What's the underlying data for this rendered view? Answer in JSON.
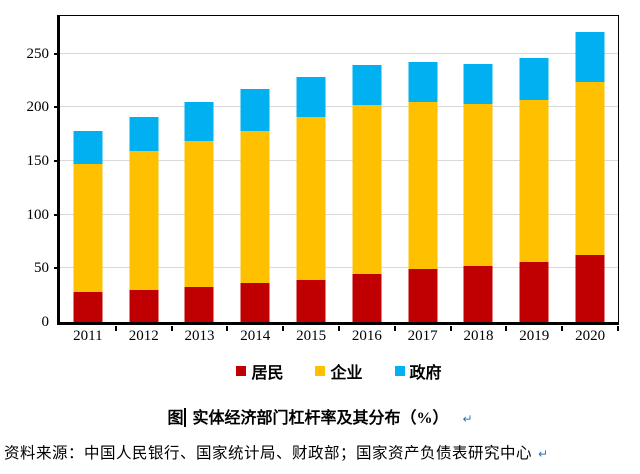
{
  "chart_data": {
    "type": "bar",
    "stacked": true,
    "categories": [
      "2011",
      "2012",
      "2013",
      "2014",
      "2015",
      "2016",
      "2017",
      "2018",
      "2019",
      "2020"
    ],
    "series": [
      {
        "name": "居民",
        "key": "residents",
        "color": "#c00000",
        "values": [
          28,
          30,
          33,
          36,
          39,
          45,
          49,
          52,
          56,
          62
        ]
      },
      {
        "name": "企业",
        "key": "enterprises",
        "color": "#ffc000",
        "values": [
          119,
          129,
          136,
          142,
          152,
          157,
          156,
          151,
          151,
          162
        ]
      },
      {
        "name": "政府",
        "key": "government",
        "color": "#00b0f0",
        "values": [
          31,
          32,
          36,
          39,
          37,
          37,
          37,
          37,
          39,
          46
        ]
      }
    ],
    "totals": [
      178,
      191,
      205,
      217,
      228,
      239,
      242,
      240,
      246,
      270
    ],
    "title": "实体经济部门杠杆率及其分布（%）",
    "xlabel": "",
    "ylabel": "",
    "ylim": [
      0,
      285
    ],
    "yticks": [
      0,
      50,
      100,
      150,
      200,
      250
    ],
    "grid": true,
    "legend_position": "bottom",
    "gridline_color": "#d9d9d9",
    "axis_color": "#000000"
  },
  "caption": {
    "prefix": "图",
    "title": "实体经济部门杠杆率及其分布（%）",
    "paragraph_mark": "↵"
  },
  "source": {
    "text": "资料来源：中国人民银行、国家统计局、财政部；国家资产负债表研究中心",
    "paragraph_mark": "↵"
  },
  "colors": {
    "paragraph_mark": "#2e75b6",
    "background": "#ffffff"
  }
}
